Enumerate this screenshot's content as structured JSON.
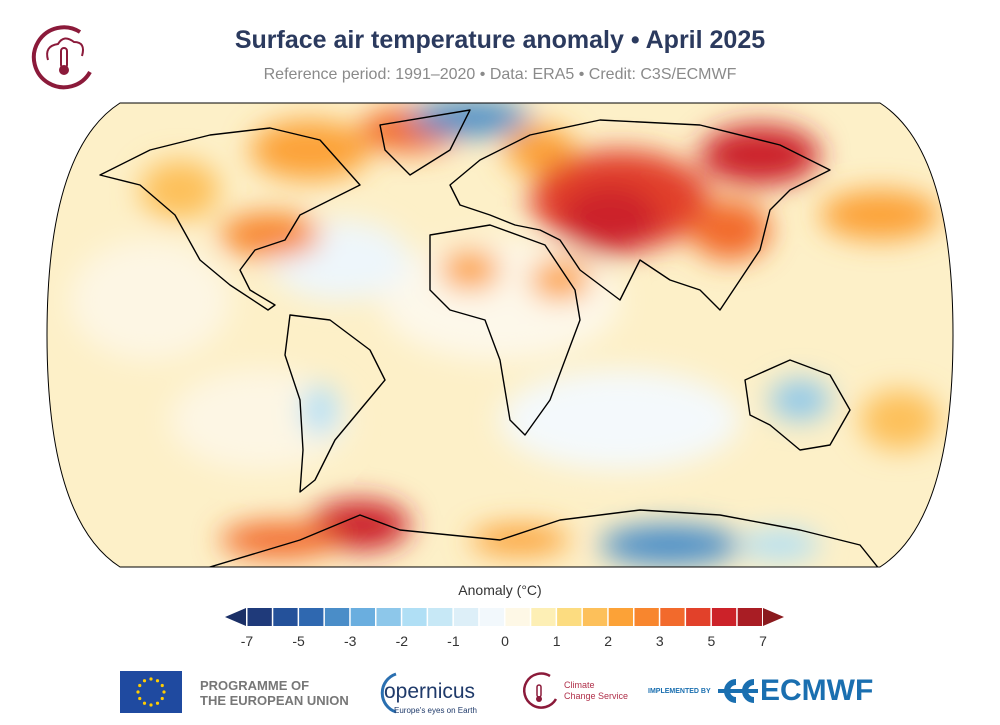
{
  "header": {
    "title": "Surface air temperature anomaly • April 2025",
    "subtitle": "Reference period: 1991–2020 • Data: ERA5 • Credit: C3S/ECMWF"
  },
  "colorbar": {
    "title": "Anomaly (°C)",
    "boundaries": [
      -7,
      -6,
      -5,
      -4,
      -3,
      -2.5,
      -2,
      -1.5,
      -1,
      -0.5,
      0,
      0.5,
      1,
      1.5,
      2,
      2.5,
      3,
      4,
      5,
      6,
      7
    ],
    "tick_labels": [
      "-7",
      "-5",
      "-3",
      "-2",
      "-1",
      "0",
      "1",
      "2",
      "3",
      "5",
      "7"
    ],
    "tick_values": [
      -7,
      -5,
      -3,
      -2,
      -1,
      0,
      1,
      2,
      3,
      5,
      7
    ],
    "colors": [
      "#1f3a7a",
      "#24519a",
      "#2f68b0",
      "#4a8dc8",
      "#6aaedf",
      "#8dc7ea",
      "#b0dff5",
      "#c7e8f6",
      "#ddeff8",
      "#f2f8fc",
      "#fef8e6",
      "#fdefb5",
      "#fcdc80",
      "#fdc05a",
      "#fca237",
      "#f8862e",
      "#f26a2c",
      "#e2412a",
      "#cc2229",
      "#a91d24"
    ],
    "under_color": "#1a2f66",
    "over_color": "#8b1a1e"
  },
  "footer": {
    "eu_line1": "PROGRAMME OF",
    "eu_line2": "THE EUROPEAN UNION",
    "copernicus": "opernicus",
    "copernicus_tagline": "Europe's eyes on Earth",
    "c3s_line1": "Climate",
    "c3s_line2": "Change Service",
    "implemented_by": "IMPLEMENTED BY",
    "ecmwf": "ECMWF"
  }
}
